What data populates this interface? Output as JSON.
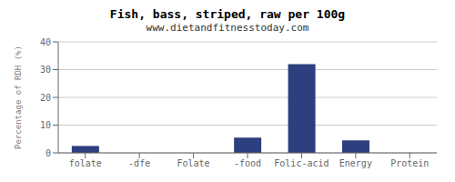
{
  "chart_data": {
    "type": "bar",
    "title": "Fish, bass, striped, raw per 100g",
    "subtitle": "www.dietandfitnesstoday.com",
    "categories": [
      "folate",
      "-dfe",
      "Folate",
      "-food",
      "Folic-acid",
      "Energy",
      "Protein"
    ],
    "values": [
      2.5,
      0,
      0,
      5.5,
      32,
      4.5,
      0
    ],
    "color": "#2d3f7f",
    "ylabel": "Percentage of RDH (%)",
    "ylim": [
      0,
      40
    ],
    "yticks": [
      0,
      10,
      20,
      30,
      40
    ],
    "grid": true
  }
}
